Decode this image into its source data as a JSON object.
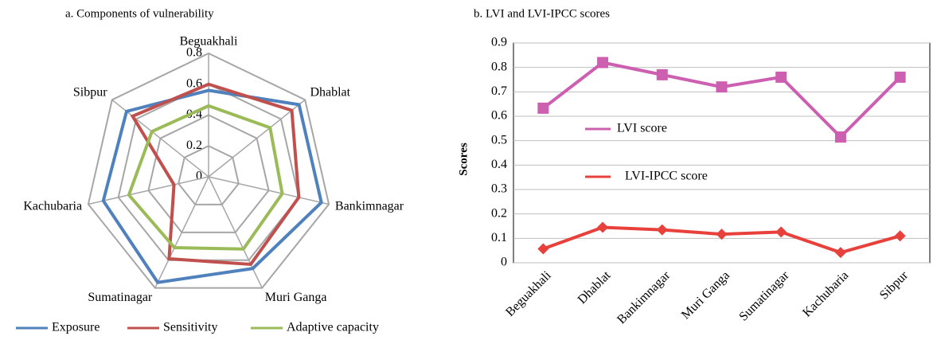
{
  "chart_data": [
    {
      "type": "radar",
      "title": "a. Components of vulnerability",
      "categories": [
        "Beguakhali",
        "Dhablat",
        "Bankimnagar",
        "Muri Ganga",
        "Sumatinagar",
        "Kachubaria",
        "Sibpur"
      ],
      "series": [
        {
          "name": "Exposure",
          "color": "#4f81bd",
          "values": [
            0.56,
            0.75,
            0.75,
            0.66,
            0.76,
            0.7,
            0.68
          ]
        },
        {
          "name": "Sensitivity",
          "color": "#c0504d",
          "values": [
            0.6,
            0.69,
            0.6,
            0.63,
            0.59,
            0.23,
            0.63
          ]
        },
        {
          "name": "Adaptive capacity",
          "color": "#9bbb59",
          "values": [
            0.46,
            0.51,
            0.49,
            0.52,
            0.51,
            0.53,
            0.47
          ]
        }
      ],
      "ylim": [
        0,
        0.8
      ],
      "yticks": [
        0,
        0.2,
        0.4,
        0.6,
        0.8
      ],
      "grid": true
    },
    {
      "type": "line",
      "title": "b. LVI and LVI-IPCC scores",
      "y_label": "Scores",
      "categories": [
        "Beguakhali",
        "Dhablat",
        "Bankimnagar",
        "Muri Ganga",
        "Sumatinagar",
        "Kachubaria",
        "Sibpur"
      ],
      "series": [
        {
          "name": "LVI score",
          "color": "#cc5fb0",
          "values": [
            0.633,
            0.82,
            0.77,
            0.72,
            0.76,
            0.515,
            0.76
          ]
        },
        {
          "name": "LVI-IPCC score",
          "color": "#e8403a",
          "values": [
            0.057,
            0.145,
            0.135,
            0.117,
            0.126,
            0.042,
            0.11
          ]
        }
      ],
      "ylim": [
        0,
        0.9
      ],
      "yticks": [
        0,
        0.1,
        0.2,
        0.3,
        0.4,
        0.5,
        0.6,
        0.7,
        0.8,
        0.9
      ],
      "grid": true
    }
  ]
}
